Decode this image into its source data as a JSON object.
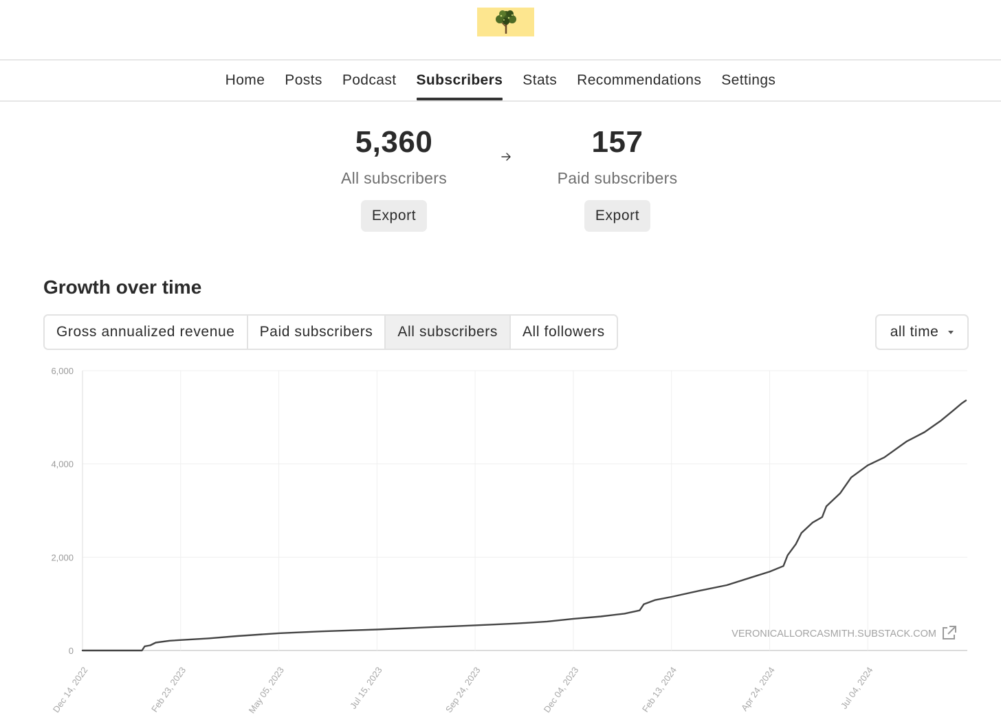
{
  "logo": {
    "icon": "tree-icon",
    "background": "#fde68f"
  },
  "nav": {
    "items": [
      {
        "label": "Home"
      },
      {
        "label": "Posts"
      },
      {
        "label": "Podcast"
      },
      {
        "label": "Subscribers",
        "active": true
      },
      {
        "label": "Stats"
      },
      {
        "label": "Recommendations"
      },
      {
        "label": "Settings"
      }
    ]
  },
  "summary": {
    "all": {
      "value": "5,360",
      "label": "All subscribers",
      "export_label": "Export"
    },
    "paid": {
      "value": "157",
      "label": "Paid subscribers",
      "export_label": "Export"
    }
  },
  "growth": {
    "title": "Growth over time",
    "tabs": [
      {
        "label": "Gross annualized revenue"
      },
      {
        "label": "Paid subscribers"
      },
      {
        "label": "All subscribers",
        "active": true
      },
      {
        "label": "All followers"
      }
    ],
    "range": {
      "selected": "all time"
    }
  },
  "chart_data": {
    "type": "line",
    "watermark": "VERONICALLORCASMITH.SUBSTACK.COM",
    "ylim": [
      0,
      6000
    ],
    "yticks": [
      0,
      2000,
      4000,
      6000
    ],
    "ytick_labels": [
      "0",
      "2,000",
      "4,000",
      "6,000"
    ],
    "xticks": [
      "2022-12-14",
      "2023-02-23",
      "2023-05-05",
      "2023-07-15",
      "2023-09-24",
      "2023-12-04",
      "2024-02-13",
      "2024-04-24",
      "2024-07-04"
    ],
    "xtick_labels": [
      "Dec 14, 2022",
      "Feb 23, 2023",
      "May 05, 2023",
      "Jul 15, 2023",
      "Sep 24, 2023",
      "Dec 04, 2023",
      "Feb 13, 2024",
      "Apr 24, 2024",
      "Jul 04, 2024"
    ],
    "xlim": [
      "2022-12-14",
      "2024-09-14"
    ],
    "grid": true,
    "series": [
      {
        "color": "#444444",
        "points": [
          [
            "2022-12-14",
            0
          ],
          [
            "2023-01-26",
            0
          ],
          [
            "2023-01-28",
            90
          ],
          [
            "2023-02-01",
            110
          ],
          [
            "2023-02-05",
            170
          ],
          [
            "2023-02-15",
            210
          ],
          [
            "2023-03-15",
            260
          ],
          [
            "2023-04-05",
            310
          ],
          [
            "2023-05-05",
            370
          ],
          [
            "2023-06-05",
            410
          ],
          [
            "2023-07-15",
            450
          ],
          [
            "2023-08-15",
            490
          ],
          [
            "2023-09-24",
            540
          ],
          [
            "2023-10-24",
            580
          ],
          [
            "2023-11-15",
            620
          ],
          [
            "2023-12-04",
            680
          ],
          [
            "2023-12-24",
            730
          ],
          [
            "2024-01-10",
            790
          ],
          [
            "2024-01-21",
            860
          ],
          [
            "2024-01-24",
            990
          ],
          [
            "2024-02-01",
            1080
          ],
          [
            "2024-02-13",
            1150
          ],
          [
            "2024-03-04",
            1280
          ],
          [
            "2024-03-24",
            1400
          ],
          [
            "2024-04-10",
            1560
          ],
          [
            "2024-04-24",
            1690
          ],
          [
            "2024-05-04",
            1810
          ],
          [
            "2024-05-07",
            2040
          ],
          [
            "2024-05-13",
            2280
          ],
          [
            "2024-05-17",
            2520
          ],
          [
            "2024-05-25",
            2740
          ],
          [
            "2024-06-01",
            2860
          ],
          [
            "2024-06-04",
            3090
          ],
          [
            "2024-06-14",
            3370
          ],
          [
            "2024-06-22",
            3710
          ],
          [
            "2024-07-04",
            3970
          ],
          [
            "2024-07-16",
            4140
          ],
          [
            "2024-08-01",
            4480
          ],
          [
            "2024-08-14",
            4680
          ],
          [
            "2024-08-26",
            4930
          ],
          [
            "2024-09-04",
            5150
          ],
          [
            "2024-09-10",
            5300
          ],
          [
            "2024-09-13",
            5360
          ]
        ]
      }
    ]
  }
}
